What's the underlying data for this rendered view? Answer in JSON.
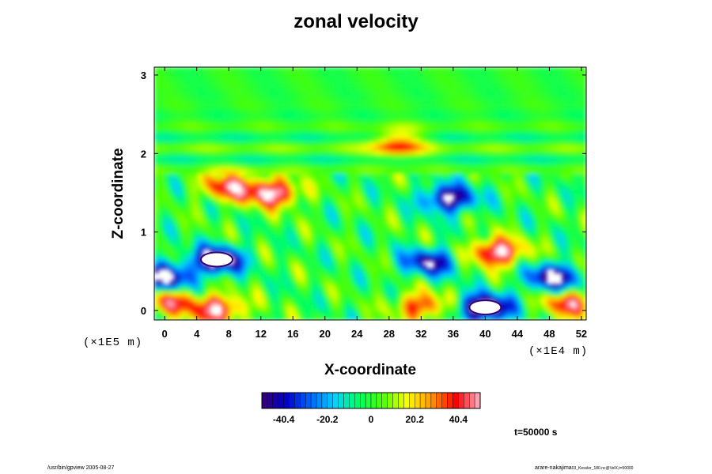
{
  "chart_data": {
    "type": "heatmap",
    "title": "zonal velocity",
    "xlabel": "X-coordinate",
    "ylabel": "Z-coordinate",
    "x_scale_note": "(×1E4 m)",
    "y_scale_note": "(×1E5 m)",
    "xlim": [
      -1.3,
      52.6
    ],
    "ylim": [
      -0.12,
      3.1
    ],
    "x_ticks": [
      0,
      4,
      8,
      12,
      16,
      20,
      24,
      28,
      32,
      36,
      40,
      44,
      48,
      52
    ],
    "y_ticks": [
      0,
      1,
      2,
      3
    ],
    "colorbar": {
      "range": [
        -50.5,
        50.5
      ],
      "ticks": [
        -40.4,
        -20.2,
        0,
        20.2,
        40.4
      ],
      "colors": [
        "#3a0070",
        "#0000c8",
        "#0064ff",
        "#00d2ff",
        "#00ff64",
        "#50ff00",
        "#ffff00",
        "#ff9600",
        "#ff0000",
        "#ffb4c8"
      ]
    },
    "features": [
      {
        "x": 6.5,
        "z": 0.65,
        "value": -52
      },
      {
        "x": 33,
        "z": 0.62,
        "value": -38
      },
      {
        "x": 40,
        "z": 0.04,
        "value": -54
      },
      {
        "x": 48.5,
        "z": 0.42,
        "value": -46
      },
      {
        "x": 0,
        "z": 0.42,
        "value": -46
      },
      {
        "x": 35.5,
        "z": 1.43,
        "value": -45
      },
      {
        "x": 13.5,
        "z": 1.5,
        "value": 44
      },
      {
        "x": 8,
        "z": 1.58,
        "value": 36
      },
      {
        "x": 41.5,
        "z": 0.75,
        "value": 46
      },
      {
        "x": 6.5,
        "z": 0.02,
        "value": 42
      },
      {
        "x": 32,
        "z": 0.06,
        "value": 32
      },
      {
        "x": 50.5,
        "z": 0.1,
        "value": 34
      },
      {
        "x": 0.5,
        "z": 0.12,
        "value": 30
      },
      {
        "x": 29,
        "z": 2.12,
        "value": 28
      }
    ]
  },
  "annotations": {
    "time": "t=50000 s",
    "footer_left": "/usr/bin/gpview 2005-08-27",
    "footer_right": "arare-nakajima",
    "footer_right_small": "03_Kessler_180.nc@VelX,t=50000"
  }
}
